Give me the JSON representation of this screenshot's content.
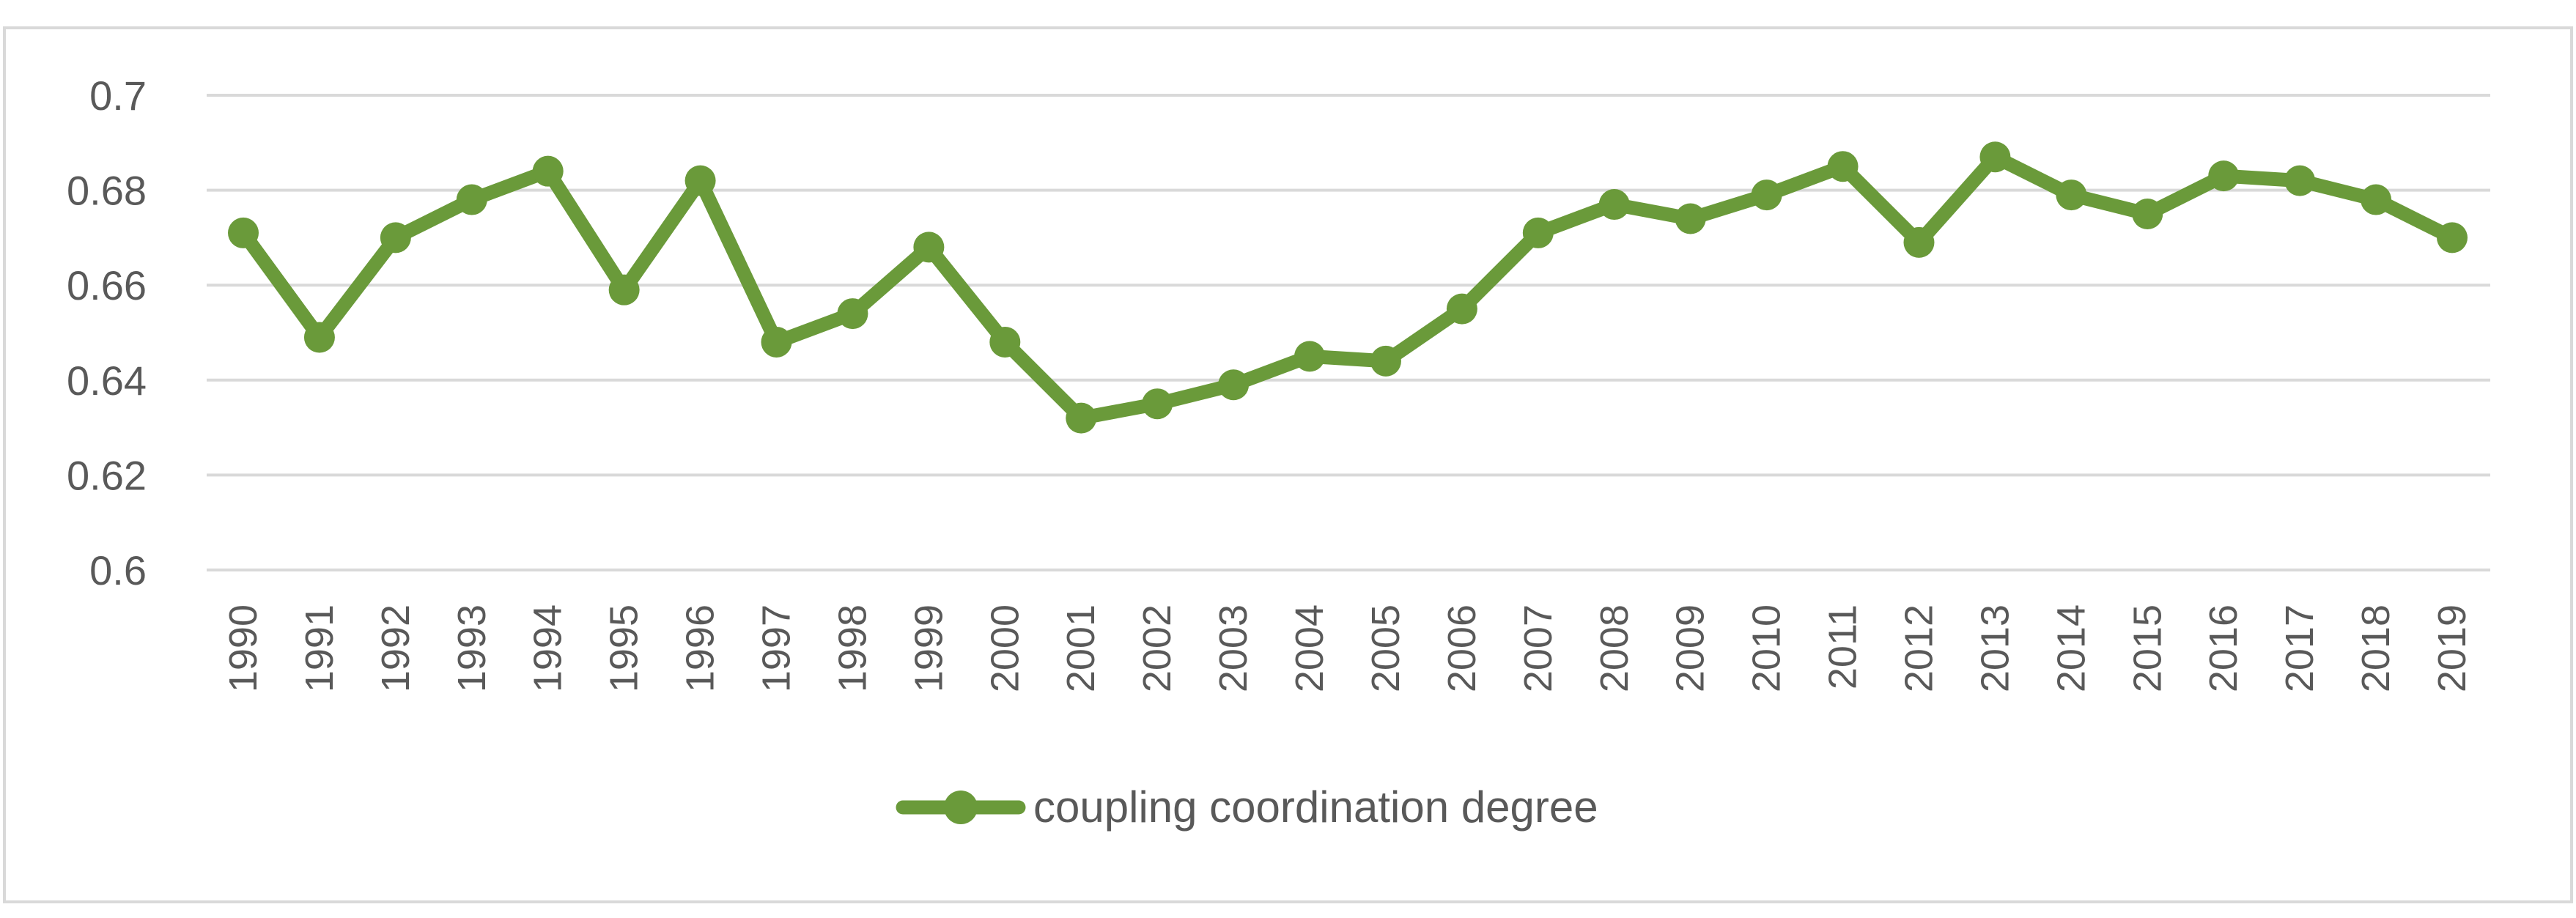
{
  "chart_data": {
    "type": "line",
    "title": "",
    "xlabel": "",
    "ylabel": "",
    "categories": [
      "1990",
      "1991",
      "1992",
      "1993",
      "1994",
      "1995",
      "1996",
      "1997",
      "1998",
      "1999",
      "2000",
      "2001",
      "2002",
      "2003",
      "2004",
      "2005",
      "2006",
      "2007",
      "2008",
      "2009",
      "2010",
      "2011",
      "2012",
      "2013",
      "2014",
      "2015",
      "2016",
      "2017",
      "2018",
      "2019"
    ],
    "series": [
      {
        "name": "coupling coordination degree",
        "color": "#6a9a3a",
        "marker": "circle",
        "values": [
          0.671,
          0.649,
          0.67,
          0.678,
          0.684,
          0.659,
          0.682,
          0.648,
          0.654,
          0.668,
          0.648,
          0.632,
          0.635,
          0.639,
          0.645,
          0.644,
          0.655,
          0.671,
          0.677,
          0.674,
          0.679,
          0.685,
          0.669,
          0.687,
          0.679,
          0.675,
          0.683,
          0.682,
          0.678,
          0.67
        ]
      }
    ],
    "ylim": [
      0.6,
      0.7
    ],
    "yticks": [
      "0.6",
      "0.62",
      "0.64",
      "0.66",
      "0.68",
      "0.7"
    ],
    "ytick_values": [
      0.6,
      0.62,
      0.64,
      0.66,
      0.68,
      0.7
    ],
    "grid": true,
    "legend_position": "bottom",
    "colors": {
      "gridline": "#d9d9d9",
      "frame": "#d9d9d9",
      "text": "#595959"
    }
  }
}
